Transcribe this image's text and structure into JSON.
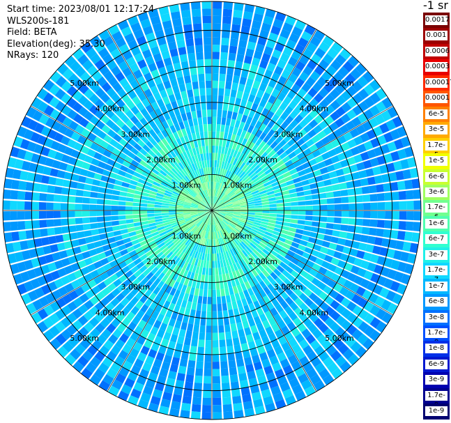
{
  "info": {
    "start_time": "Start time: 2023/08/01 12:17:24",
    "instrument": "WLS200s-181",
    "field": "Field: BETA",
    "elevation": "Elevation(deg): 35.30",
    "nrays": "NRays: 120"
  },
  "colorbar": {
    "unit": "-1 sr",
    "levels": [
      {
        "label": "0.0017",
        "color": "#7a0000"
      },
      {
        "label": "0.001",
        "color": "#9c0000"
      },
      {
        "label": "0.0006",
        "color": "#c00000"
      },
      {
        "label": "0.0003",
        "color": "#e80000"
      },
      {
        "label": "0.00017",
        "color": "#ff2a00"
      },
      {
        "label": "0.0001",
        "color": "#ff5500"
      },
      {
        "label": "6e-5",
        "color": "#ff8000"
      },
      {
        "label": "3e-5",
        "color": "#ffaa00"
      },
      {
        "label": "1.7e-5",
        "color": "#ffd000"
      },
      {
        "label": "1e-5",
        "color": "#f0ff00"
      },
      {
        "label": "6e-6",
        "color": "#c8ff30"
      },
      {
        "label": "3e-6",
        "color": "#a0ff60"
      },
      {
        "label": "1.7e-6",
        "color": "#70ff90"
      },
      {
        "label": "1e-6",
        "color": "#50ffb0"
      },
      {
        "label": "6e-7",
        "color": "#30ffd0"
      },
      {
        "label": "3e-7",
        "color": "#20f0e8"
      },
      {
        "label": "1.7e-7",
        "color": "#10d8ff"
      },
      {
        "label": "1e-7",
        "color": "#00b8ff"
      },
      {
        "label": "6e-8",
        "color": "#0098ff"
      },
      {
        "label": "3e-8",
        "color": "#0070ff"
      },
      {
        "label": "1.7e-8",
        "color": "#0050ff"
      },
      {
        "label": "1e-8",
        "color": "#0030e8"
      },
      {
        "label": "6e-9",
        "color": "#0018d0"
      },
      {
        "label": "3e-9",
        "color": "#0000b0"
      },
      {
        "label": "1.7e-9",
        "color": "#000090"
      },
      {
        "label": "1e-9",
        "color": "#000070"
      }
    ]
  },
  "range_rings": {
    "labels": [
      "1.00km",
      "2.00km",
      "3.00km",
      "4.00km",
      "5.00km"
    ],
    "max_range_km": 5.8
  },
  "ppi": {
    "nrays": 120,
    "gates": 29,
    "colors": {
      "near": [
        "#90ffa0",
        "#70ff90",
        "#50ffb0",
        "#30ffd0"
      ],
      "mid": [
        "#30ffd0",
        "#20f0e8",
        "#10d8ff",
        "#50ffb0"
      ],
      "far": [
        "#10d8ff",
        "#00b8ff",
        "#0098ff",
        "#20f0e8",
        "#00b8ff"
      ],
      "edge": [
        "#00b8ff",
        "#0098ff",
        "#0070ff",
        "#10d8ff",
        "#0098ff"
      ]
    }
  }
}
